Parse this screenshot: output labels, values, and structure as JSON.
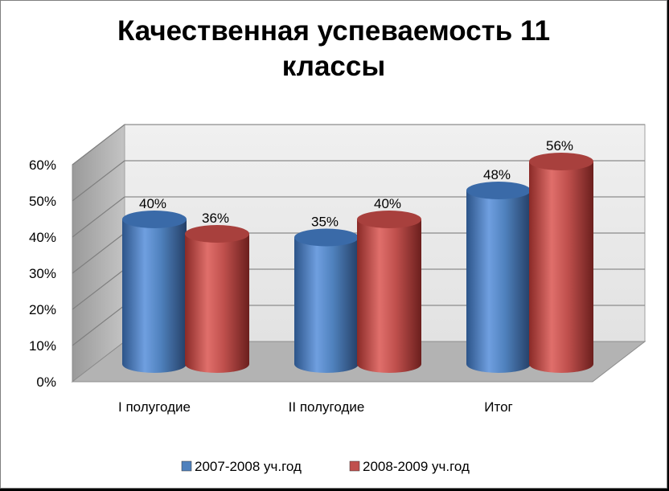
{
  "chart_data": {
    "type": "bar",
    "title": "Качественная успеваемость 11 классы",
    "title_lines": [
      "Качественная успеваемость 11",
      "классы"
    ],
    "categories": [
      "I полугодие",
      "II полугодие",
      "Итог"
    ],
    "series": [
      {
        "name": "2007-2008 уч.год",
        "color": "#4f81bd",
        "values": [
          40,
          35,
          48
        ],
        "labels": [
          "40%",
          "35%",
          "48%"
        ]
      },
      {
        "name": "2008-2009 уч.год",
        "color": "#c0504d",
        "values": [
          36,
          40,
          56
        ],
        "labels": [
          "36%",
          "40%",
          "56%"
        ]
      }
    ],
    "y_ticks": [
      "0%",
      "10%",
      "20%",
      "30%",
      "40%",
      "50%",
      "60%"
    ],
    "ylim": [
      0,
      60
    ],
    "grid": true,
    "legend_position": "bottom",
    "style": "3d-cylinder"
  }
}
